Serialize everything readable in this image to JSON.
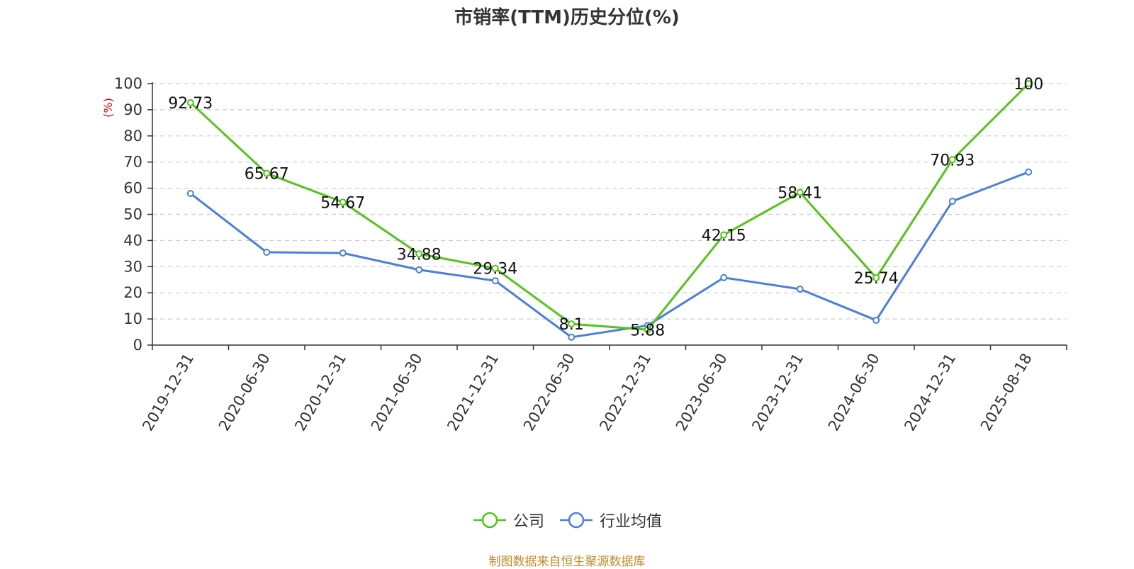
{
  "chart_data": {
    "type": "line",
    "title": "市销率(TTM)历史分位(%)",
    "ylabel": "(%)",
    "ylim": [
      0,
      100
    ],
    "yticks": [
      0,
      10,
      20,
      30,
      40,
      50,
      60,
      70,
      80,
      90,
      100
    ],
    "categories": [
      "2019-12-31",
      "2020-06-30",
      "2020-12-31",
      "2021-06-30",
      "2021-12-31",
      "2022-06-30",
      "2022-12-31",
      "2023-06-30",
      "2023-12-31",
      "2024-06-30",
      "2024-12-31",
      "2025-08-18"
    ],
    "series": [
      {
        "name": "公司",
        "color": "#52c41a",
        "values": [
          92.73,
          65.67,
          54.67,
          34.88,
          29.34,
          8.1,
          5.88,
          42.15,
          58.41,
          25.74,
          70.93,
          100
        ],
        "labels": [
          "92.73",
          "65.67",
          "54.67",
          "34.88",
          "29.34",
          "8.1",
          "5.88",
          "42.15",
          "58.41",
          "25.74",
          "70.93",
          "100"
        ]
      },
      {
        "name": "行业均值",
        "color": "#4a7fdc",
        "values": [
          58,
          35.5,
          35.2,
          28.8,
          24.6,
          3,
          7.5,
          25.8,
          21.4,
          9.5,
          55,
          66.2
        ]
      }
    ],
    "grid": true,
    "legend_position": "bottom"
  },
  "source": "制图数据来自恒生聚源数据库"
}
